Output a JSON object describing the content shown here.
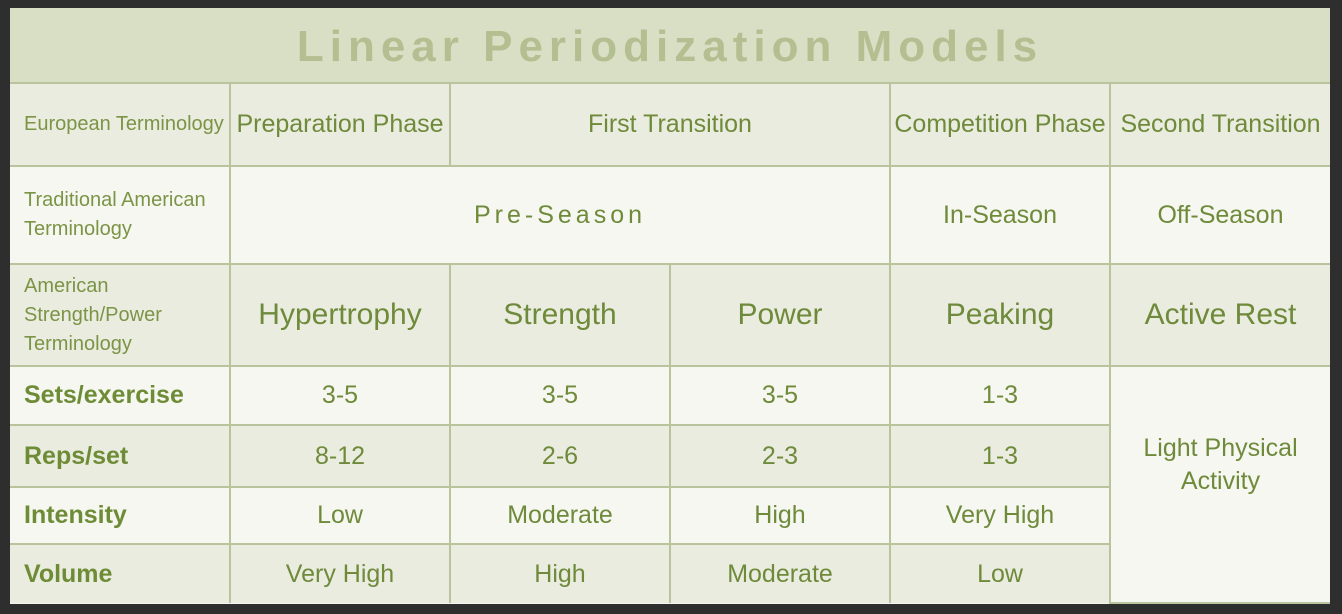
{
  "title": "Linear Periodization Models",
  "header_rows": {
    "european": {
      "label": "European Terminology",
      "phases": [
        "Preparation Phase",
        "First Transition",
        "Competition Phase",
        "Second Transition"
      ]
    },
    "traditional": {
      "label": "Traditional American Terminology",
      "seasons": [
        "Pre-Season",
        "In-Season",
        "Off-Season"
      ]
    },
    "strength_power": {
      "label": "American Strength/Power Terminology",
      "stages": [
        "Hypertrophy",
        "Strength",
        "Power",
        "Peaking",
        "Active Rest"
      ]
    }
  },
  "rows": [
    {
      "label": "Sets/exercise",
      "values": [
        "3-5",
        "3-5",
        "3-5",
        "1-3"
      ]
    },
    {
      "label": "Reps/set",
      "values": [
        "8-12",
        "2-6",
        "2-3",
        "1-3"
      ]
    },
    {
      "label": "Intensity",
      "values": [
        "Low",
        "Moderate",
        "High",
        "Very High"
      ]
    },
    {
      "label": "Volume",
      "values": [
        "Very High",
        "High",
        "Moderate",
        "Low"
      ]
    }
  ],
  "active_rest_note": "Light Physical Activity",
  "colors": {
    "title_text": "#b3bf91",
    "cell_text": "#6f8a3a",
    "border": "#b9c49c",
    "shaded_cell": "#e9ecdf",
    "light_cell": "#f5f7f0"
  }
}
